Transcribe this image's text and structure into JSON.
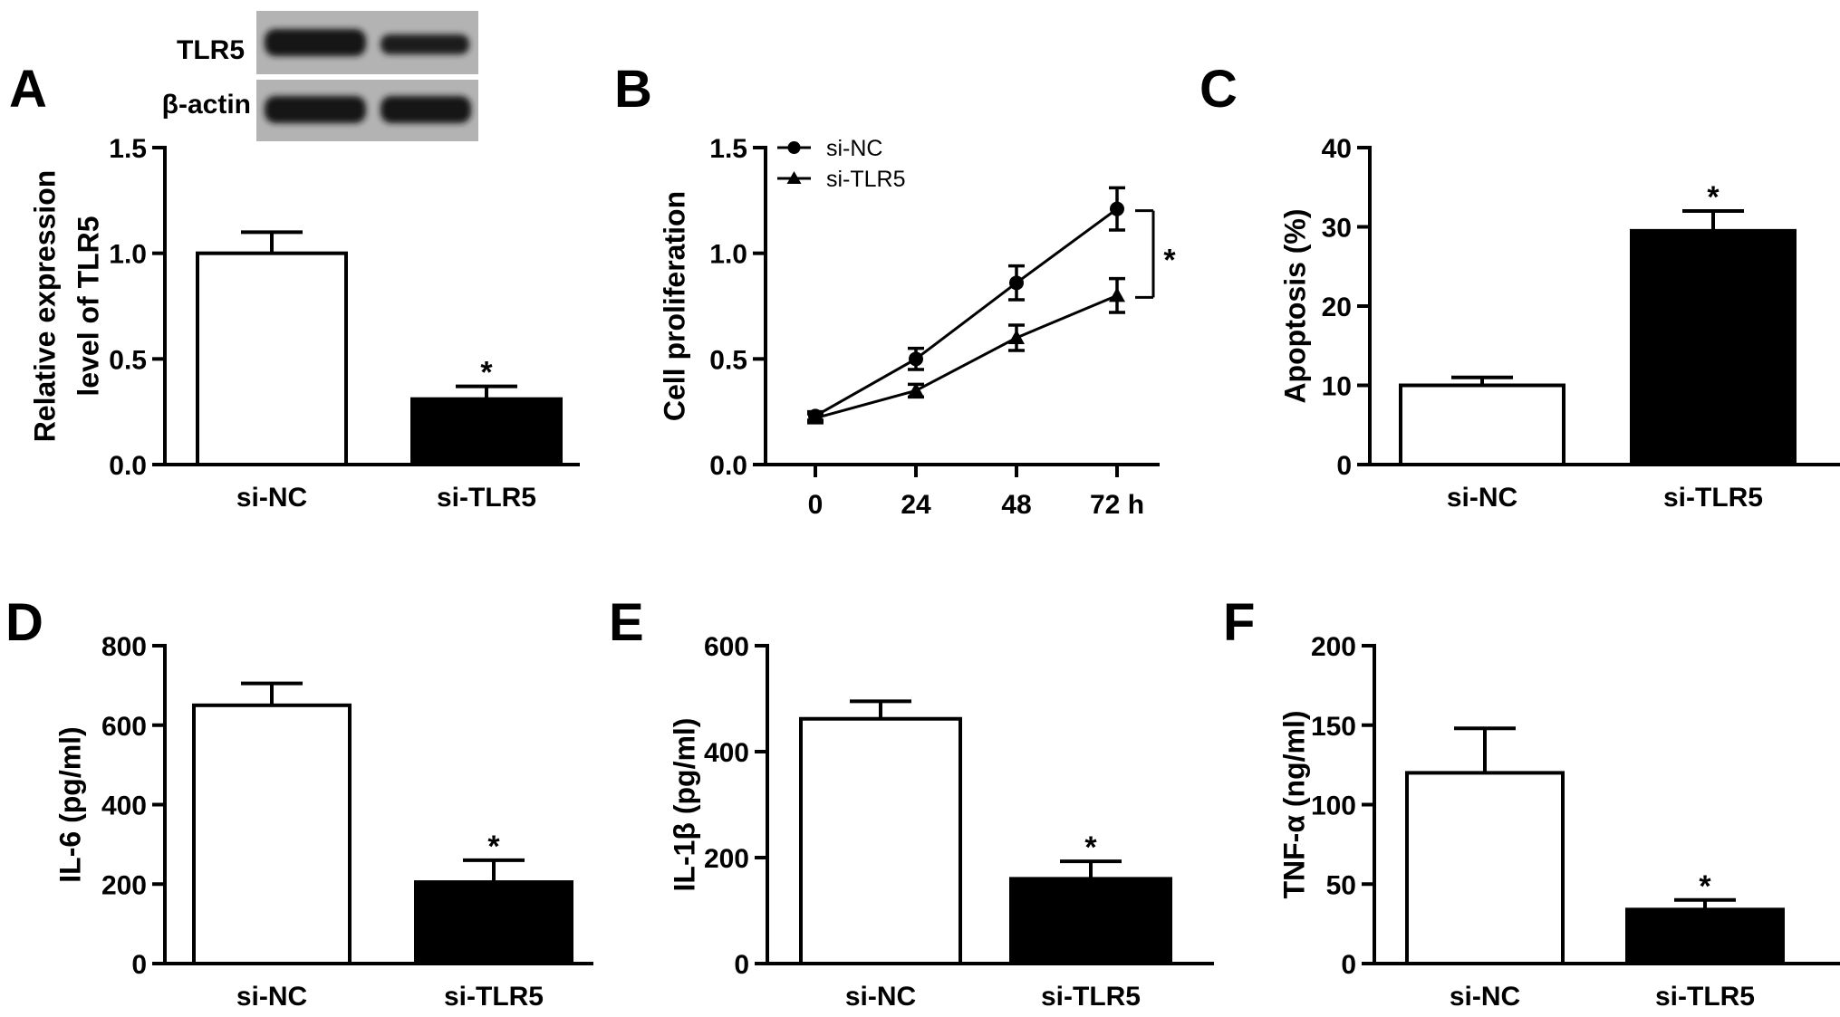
{
  "colors": {
    "si_NC_fill": "#ffffff",
    "si_TLR5_fill": "#000000",
    "axis": "#000000",
    "blot_bg": "#b3b3b3",
    "band": "#151515"
  },
  "blot": {
    "row_labels": [
      "TLR5",
      "β-actin"
    ],
    "lanes": [
      "si-NC",
      "si-TLR5"
    ]
  },
  "chart_data": [
    {
      "panel": "A",
      "type": "bar",
      "ylabel_lines": [
        "Relative expression",
        "level of TLR5"
      ],
      "categories": [
        "si-NC",
        "si-TLR5"
      ],
      "values": [
        1.0,
        0.31
      ],
      "errors": [
        0.1,
        0.06
      ],
      "ylim": [
        0,
        1.5
      ],
      "yticks": [
        "0.0",
        "0.5",
        "1.0",
        "1.5"
      ],
      "significance": [
        "",
        "*"
      ]
    },
    {
      "panel": "B",
      "type": "line",
      "ylabel_lines": [
        "Cell proliferation"
      ],
      "x": [
        0,
        24,
        48,
        72
      ],
      "xtick_labels": [
        "0",
        "24",
        "48",
        "72 h"
      ],
      "ylim": [
        0,
        1.5
      ],
      "yticks": [
        "0.0",
        "0.5",
        "1.0",
        "1.5"
      ],
      "series": [
        {
          "name": "si-NC",
          "marker": "circle",
          "values": [
            0.23,
            0.5,
            0.86,
            1.21
          ],
          "errors": [
            0.02,
            0.05,
            0.08,
            0.1
          ]
        },
        {
          "name": "si-TLR5",
          "marker": "triangle",
          "values": [
            0.22,
            0.35,
            0.6,
            0.8
          ],
          "errors": [
            0.02,
            0.03,
            0.06,
            0.08
          ]
        }
      ],
      "significance": "*"
    },
    {
      "panel": "C",
      "type": "bar",
      "ylabel_lines": [
        "Apoptosis (%)"
      ],
      "categories": [
        "si-NC",
        "si-TLR5"
      ],
      "values": [
        10,
        29.5
      ],
      "errors": [
        1,
        2.5
      ],
      "ylim": [
        0,
        40
      ],
      "yticks": [
        "0",
        "10",
        "20",
        "30",
        "40"
      ],
      "significance": [
        "",
        "*"
      ]
    },
    {
      "panel": "D",
      "type": "bar",
      "ylabel_lines": [
        "IL-6 (pg/ml)"
      ],
      "categories": [
        "si-NC",
        "si-TLR5"
      ],
      "values": [
        650,
        205
      ],
      "errors": [
        55,
        55
      ],
      "ylim": [
        0,
        800
      ],
      "yticks": [
        "0",
        "200",
        "400",
        "600",
        "800"
      ],
      "significance": [
        "",
        "*"
      ]
    },
    {
      "panel": "E",
      "type": "bar",
      "ylabel_lines": [
        "IL-1β (pg/ml)"
      ],
      "categories": [
        "si-NC",
        "si-TLR5"
      ],
      "values": [
        462,
        160
      ],
      "errors": [
        33,
        33
      ],
      "ylim": [
        0,
        600
      ],
      "yticks": [
        "0",
        "200",
        "400",
        "600"
      ],
      "significance": [
        "",
        "*"
      ]
    },
    {
      "panel": "F",
      "type": "bar",
      "ylabel_lines": [
        "TNF-α (ng/ml)"
      ],
      "categories": [
        "si-NC",
        "si-TLR5"
      ],
      "values": [
        120,
        34
      ],
      "errors": [
        28,
        6
      ],
      "ylim": [
        0,
        200
      ],
      "yticks": [
        "0",
        "50",
        "100",
        "150",
        "200"
      ],
      "significance": [
        "",
        "*"
      ]
    }
  ]
}
